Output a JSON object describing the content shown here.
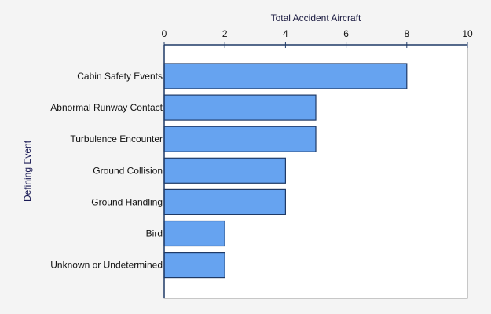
{
  "chart_data": {
    "type": "bar",
    "orientation": "horizontal",
    "title": "",
    "xlabel": "Total Accident Aircraft",
    "ylabel": "Defining Event",
    "xlim": [
      0,
      10
    ],
    "xticks": [
      0,
      2,
      4,
      6,
      8,
      10
    ],
    "x_axis_position": "top",
    "grid": false,
    "categories": [
      "Cabin Safety Events",
      "Abnormal Runway Contact",
      "Turbulence Encounter",
      "Ground Collision",
      "Ground Handling",
      "Bird",
      "Unknown or Undetermined"
    ],
    "values": [
      8,
      5,
      5,
      4,
      4,
      2,
      2
    ],
    "colors": {
      "bar": "#66a3f0",
      "bar_edge": "#1f3a66",
      "axis": "#1f3a66",
      "plot_bg": "#ffffff",
      "page_bg": "#f4f4f4"
    }
  }
}
